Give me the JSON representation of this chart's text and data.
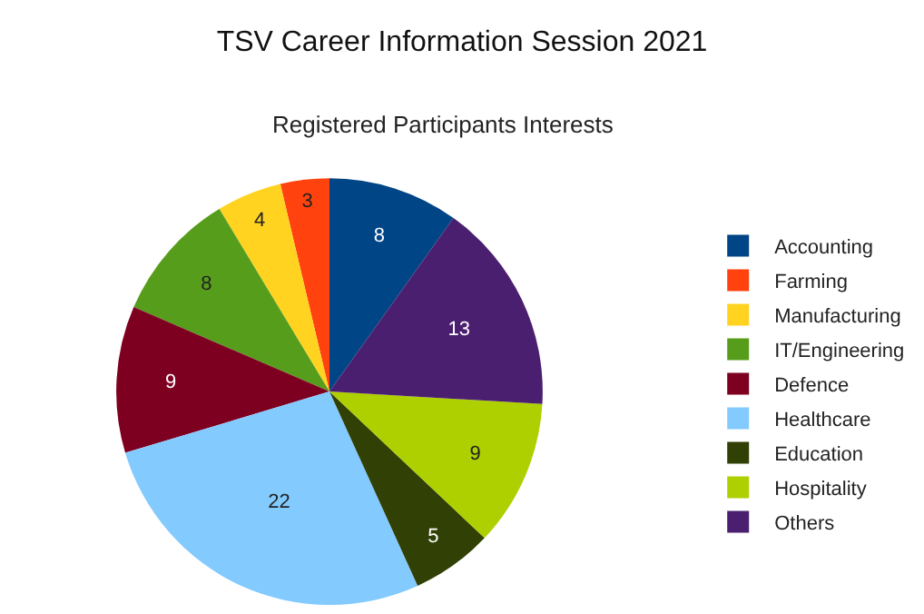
{
  "chart_data": {
    "type": "pie",
    "title": "TSV Career Information Session 2021",
    "subtitle": "Registered Participants Interests",
    "categories": [
      "Accounting",
      "Farming",
      "Manufacturing",
      "IT/Engineering",
      "Defence",
      "Healthcare",
      "Education",
      "Hospitality",
      "Others"
    ],
    "values": [
      8,
      3,
      4,
      8,
      9,
      22,
      5,
      9,
      13
    ],
    "colors": [
      "#004586",
      "#ff420e",
      "#ffd320",
      "#579d1c",
      "#7e0021",
      "#83caff",
      "#314004",
      "#aecf00",
      "#4b1f6f"
    ],
    "data_labels": true,
    "legend": "right"
  }
}
